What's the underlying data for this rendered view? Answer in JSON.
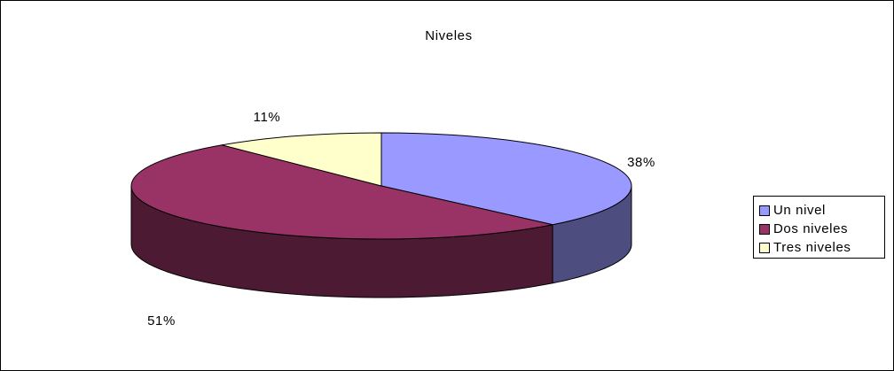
{
  "chart_data": {
    "type": "pie",
    "title": "Niveles",
    "three_d": true,
    "categories": [
      "Un nivel",
      "Dos niveles",
      "Tres niveles"
    ],
    "values": [
      38,
      51,
      11
    ],
    "data_labels": [
      "38%",
      "51%",
      "11%"
    ],
    "colors": [
      "#9999ff",
      "#993366",
      "#ffffcc"
    ],
    "legend_position": "right"
  }
}
